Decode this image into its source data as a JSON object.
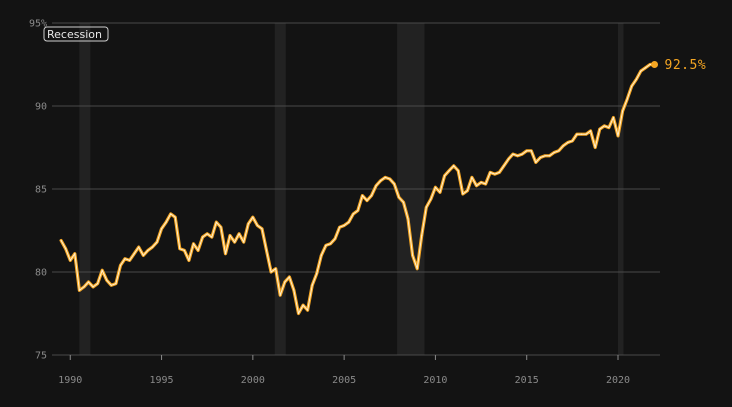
{
  "chart_data": {
    "type": "line",
    "title": "",
    "xlabel": "",
    "ylabel": "",
    "xlim": [
      1989.0,
      2022.3
    ],
    "ylim": [
      75,
      95
    ],
    "y_ticks": [
      75,
      80,
      85,
      90,
      95
    ],
    "y_tick_labels": [
      "75",
      "80",
      "85",
      "90",
      "95%"
    ],
    "x_ticks": [
      1990,
      1995,
      2000,
      2005,
      2010,
      2015,
      2020
    ],
    "x_tick_labels": [
      "1990",
      "1995",
      "2000",
      "2005",
      "2010",
      "2015",
      "2020"
    ],
    "grid": "horizontal",
    "legend": {
      "label": "Recession",
      "placement": "top-left"
    },
    "recessions": [
      [
        1990.5,
        1991.1
      ],
      [
        2001.2,
        2001.8
      ],
      [
        2007.9,
        2009.4
      ],
      [
        2020.0,
        2020.3
      ]
    ],
    "end_label": "92.5%",
    "colors": {
      "line": "#f5a623",
      "recession": "#222222",
      "grid": "#4a4a4a",
      "background": "#131313"
    },
    "series": [
      {
        "x": [
          1989.5,
          1989.75,
          1990.0,
          1990.25,
          1990.5,
          1990.75,
          1991.0,
          1991.25,
          1991.5,
          1991.75,
          1992.0,
          1992.25,
          1992.5,
          1992.75,
          1993.0,
          1993.25,
          1993.5,
          1993.75,
          1994.0,
          1994.25,
          1994.5,
          1994.75,
          1995.0,
          1995.25,
          1995.5,
          1995.75,
          1996.0,
          1996.25,
          1996.5,
          1996.75,
          1997.0,
          1997.25,
          1997.5,
          1997.75,
          1998.0,
          1998.25,
          1998.5,
          1998.75,
          1999.0,
          1999.25,
          1999.5,
          1999.75,
          2000.0,
          2000.25,
          2000.5,
          2000.75,
          2001.0,
          2001.25,
          2001.5,
          2001.75,
          2002.0,
          2002.25,
          2002.5,
          2002.75,
          2003.0,
          2003.25,
          2003.5,
          2003.75,
          2004.0,
          2004.25,
          2004.5,
          2004.75,
          2005.0,
          2005.25,
          2005.5,
          2005.75,
          2006.0,
          2006.25,
          2006.5,
          2006.75,
          2007.0,
          2007.25,
          2007.5,
          2007.75,
          2008.0,
          2008.25,
          2008.5,
          2008.75,
          2009.0,
          2009.25,
          2009.5,
          2009.75,
          2010.0,
          2010.25,
          2010.5,
          2010.75,
          2011.0,
          2011.25,
          2011.5,
          2011.75,
          2012.0,
          2012.25,
          2012.5,
          2012.75,
          2013.0,
          2013.25,
          2013.5,
          2013.75,
          2014.0,
          2014.25,
          2014.5,
          2014.75,
          2015.0,
          2015.25,
          2015.5,
          2015.75,
          2016.0,
          2016.25,
          2016.5,
          2016.75,
          2017.0,
          2017.25,
          2017.5,
          2017.75,
          2018.0,
          2018.25,
          2018.5,
          2018.75,
          2019.0,
          2019.25,
          2019.5,
          2019.75,
          2020.0,
          2020.25,
          2020.5,
          2020.75,
          2021.0,
          2021.25,
          2021.5,
          2021.75,
          2022.0
        ],
        "values": [
          81.9,
          81.4,
          80.7,
          81.1,
          78.9,
          79.1,
          79.4,
          79.1,
          79.3,
          80.1,
          79.5,
          79.2,
          79.3,
          80.4,
          80.8,
          80.7,
          81.1,
          81.5,
          81.0,
          81.3,
          81.5,
          81.8,
          82.6,
          83.0,
          83.5,
          83.3,
          81.4,
          81.3,
          80.7,
          81.7,
          81.3,
          82.1,
          82.3,
          82.1,
          83.0,
          82.7,
          81.1,
          82.2,
          81.8,
          82.3,
          81.8,
          82.9,
          83.3,
          82.8,
          82.6,
          81.3,
          80.0,
          80.2,
          78.6,
          79.4,
          79.7,
          78.9,
          77.5,
          78.0,
          77.7,
          79.2,
          79.9,
          81.0,
          81.6,
          81.7,
          82.0,
          82.7,
          82.8,
          83.0,
          83.5,
          83.7,
          84.6,
          84.3,
          84.6,
          85.2,
          85.5,
          85.7,
          85.6,
          85.3,
          84.5,
          84.2,
          83.2,
          81.0,
          80.2,
          82.2,
          83.9,
          84.4,
          85.1,
          84.8,
          85.8,
          86.1,
          86.4,
          86.1,
          84.7,
          84.9,
          85.7,
          85.2,
          85.4,
          85.3,
          86.0,
          85.9,
          86.0,
          86.4,
          86.8,
          87.1,
          87.0,
          87.1,
          87.3,
          87.3,
          86.6,
          86.9,
          87.0,
          87.0,
          87.2,
          87.3,
          87.6,
          87.8,
          87.9,
          88.3,
          88.3,
          88.3,
          88.5,
          87.5,
          88.6,
          88.8,
          88.7,
          89.3,
          88.2,
          89.7,
          90.4,
          91.2,
          91.6,
          92.1,
          92.3,
          92.5,
          92.5
        ]
      }
    ]
  }
}
